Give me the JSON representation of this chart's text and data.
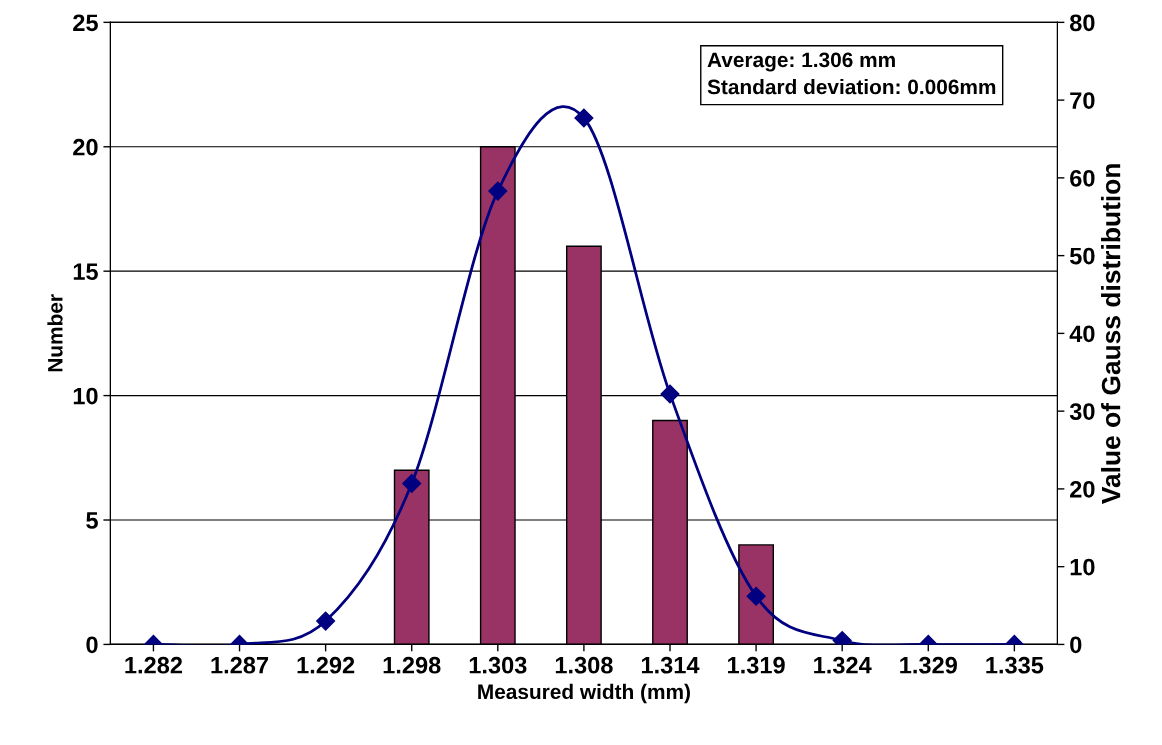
{
  "chart_data": {
    "type": "bar",
    "xlabel": "Measured width (mm)",
    "ylabel": "Number",
    "y2label": "Value of Gauss distribution",
    "categories": [
      "1.282",
      "1.287",
      "1.292",
      "1.298",
      "1.303",
      "1.308",
      "1.314",
      "1.319",
      "1.324",
      "1.329",
      "1.335"
    ],
    "series": [
      {
        "color": "#993366",
        "values": [
          0,
          0,
          0,
          7,
          20,
          16,
          9,
          4,
          0,
          0,
          0
        ]
      },
      {
        "type": "line",
        "axis": "y2",
        "color": "#000080",
        "marker": "diamond",
        "values": [
          0,
          0,
          3,
          20.7,
          58.3,
          67.7,
          32.2,
          6.2,
          0.5,
          0,
          0
        ]
      }
    ],
    "ylim": [
      0,
      25
    ],
    "yticks": [
      0,
      5,
      10,
      15,
      20,
      25
    ],
    "y2lim": [
      0,
      80
    ],
    "y2ticks": [
      0,
      10,
      20,
      30,
      40,
      50,
      60,
      70,
      80
    ],
    "grid": "y",
    "annotations": [
      "Average: 1.306 mm",
      "Standard deviation: 0.006mm"
    ]
  }
}
